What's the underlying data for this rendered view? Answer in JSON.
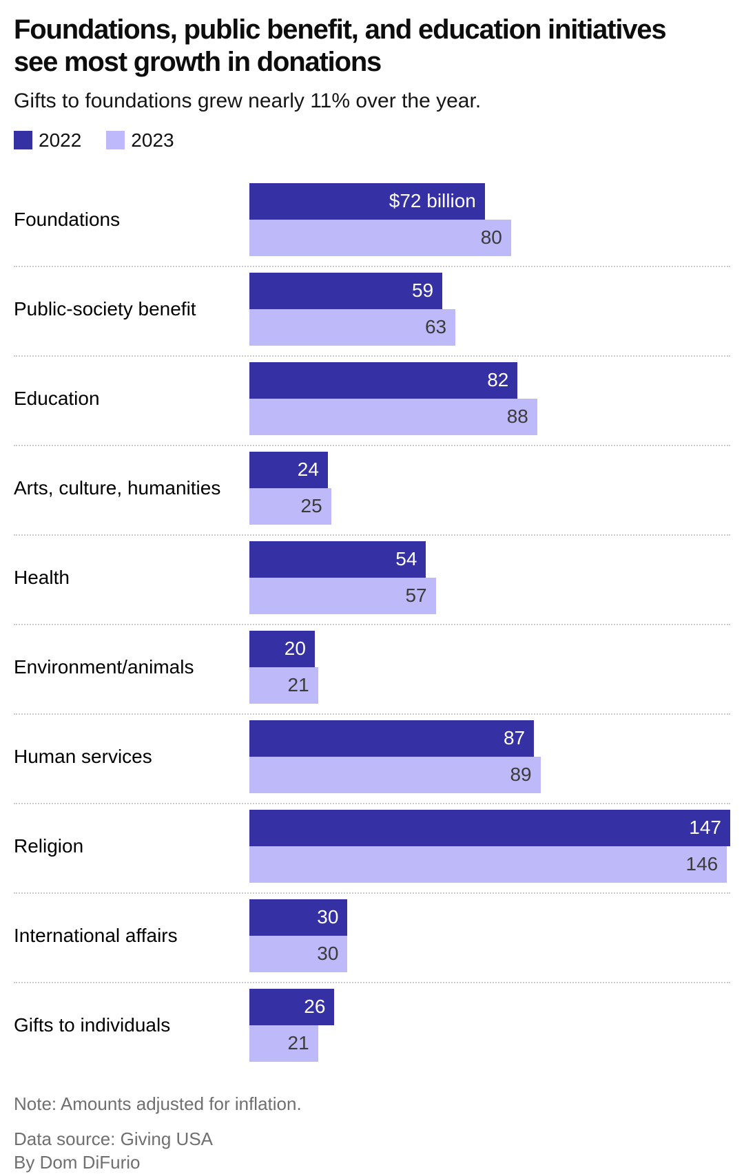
{
  "header": {
    "title_line1": "Foundations, public benefit, and education initiatives",
    "title_line2": "see most growth in donations",
    "subtitle": "Gifts to foundations grew nearly 11% over the year.",
    "legend": [
      {
        "label": "2022",
        "color": "#3530a3"
      },
      {
        "label": "2023",
        "color": "#beb9f8"
      }
    ]
  },
  "chart_data": {
    "type": "bar",
    "orientation": "horizontal",
    "unit": "billions of US dollars",
    "xlim": [
      0,
      147
    ],
    "grid": "dotted row separators",
    "legend_position": "top-left",
    "categories": [
      "Foundations",
      "Public-society benefit",
      "Education",
      "Arts, culture, humanities",
      "Health",
      "Environment/animals",
      "Human services",
      "Religion",
      "International affairs",
      "Gifts to individuals"
    ],
    "series": [
      {
        "name": "2022",
        "color": "#3530a3",
        "values": [
          72,
          59,
          82,
          24,
          54,
          20,
          87,
          147,
          30,
          26
        ],
        "labels": [
          "$72 billion",
          "59",
          "82",
          "24",
          "54",
          "20",
          "87",
          "147",
          "30",
          "26"
        ]
      },
      {
        "name": "2023",
        "color": "#beb9f8",
        "values": [
          80,
          63,
          88,
          25,
          57,
          21,
          89,
          146,
          30,
          21
        ],
        "labels": [
          "80",
          "63",
          "88",
          "25",
          "57",
          "21",
          "89",
          "146",
          "30",
          "21"
        ]
      }
    ]
  },
  "footer": {
    "note": "Note: Amounts adjusted for inflation.",
    "source": "Data source: Giving USA",
    "byline": "By Dom DiFurio"
  }
}
